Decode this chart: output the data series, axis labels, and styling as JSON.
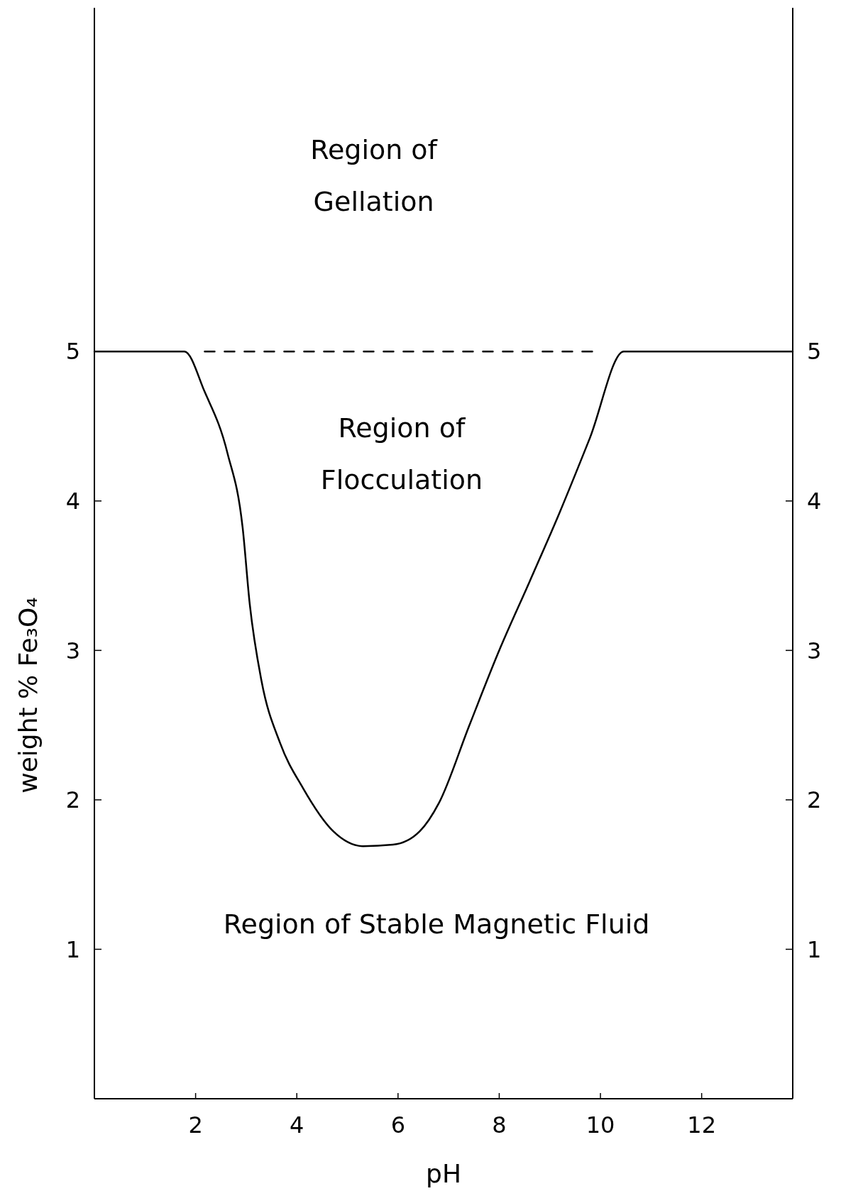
{
  "chart_data": {
    "type": "line",
    "xlabel": "pH",
    "ylabel": "weight % Fe₃O₄",
    "xlim": [
      0,
      13.8
    ],
    "xticks": [
      2,
      4,
      6,
      8,
      10,
      12
    ],
    "ylim": [
      0,
      7.3
    ],
    "yticks": [
      1,
      2,
      3,
      4,
      5
    ],
    "y2lim": [
      0,
      7.3
    ],
    "y2ticks": [
      1,
      2,
      3,
      4,
      5
    ],
    "series": [
      {
        "color": "#000000",
        "line_style": "solid",
        "x": [
          0,
          1.78,
          2.18,
          2.63,
          2.93,
          3.07,
          3.3,
          3.67,
          4.12,
          4.72,
          5.31,
          5.9,
          6.43,
          6.81,
          7.4,
          8.0,
          8.6,
          9.19,
          9.79,
          10.46,
          13.8
        ],
        "values": [
          5,
          5,
          4.73,
          4.32,
          3.82,
          3.31,
          2.8,
          2.38,
          2.08,
          1.79,
          1.69,
          1.7,
          1.79,
          1.98,
          2.49,
          3.0,
          3.46,
          3.92,
          4.42,
          5,
          5
        ]
      },
      {
        "color": "#000000",
        "line_style": "dashed",
        "x": [
          2.18,
          9.94
        ],
        "values": [
          5,
          5
        ]
      }
    ],
    "annotations": [
      "Region of\nGellation",
      "Region of\nFlocculation",
      "Region of Stable Magnetic Fluid"
    ]
  }
}
